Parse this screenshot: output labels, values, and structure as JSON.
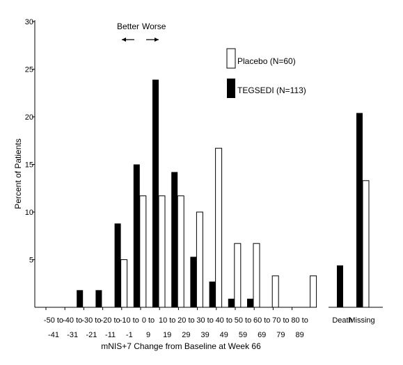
{
  "chart_data": {
    "type": "bar",
    "title": "",
    "xlabel": "mNIS+7 Change from Baseline at Week 66",
    "ylabel": "Percent of Patients",
    "ylim": [
      0,
      30
    ],
    "yticks": [
      5,
      10,
      15,
      20,
      25,
      30
    ],
    "grid": false,
    "legend_position": "top-right",
    "direction_labels": {
      "better": "Better",
      "worse": "Worse"
    },
    "categories": [
      {
        "line1": "-50 to",
        "line2": "-41"
      },
      {
        "line1": "-40 to",
        "line2": "-31"
      },
      {
        "line1": "-30 to",
        "line2": "-21"
      },
      {
        "line1": "-20 to",
        "line2": "-11"
      },
      {
        "line1": "-10 to",
        "line2": "-1"
      },
      {
        "line1": "0 to",
        "line2": "9"
      },
      {
        "line1": "10 to",
        "line2": "19"
      },
      {
        "line1": "20 to",
        "line2": "29"
      },
      {
        "line1": "30 to",
        "line2": "39"
      },
      {
        "line1": "40 to",
        "line2": "49"
      },
      {
        "line1": "50 to",
        "line2": "59"
      },
      {
        "line1": "60 to",
        "line2": "69"
      },
      {
        "line1": "70 to",
        "line2": "79"
      },
      {
        "line1": "80 to",
        "line2": "89"
      }
    ],
    "extra_categories": [
      "Death",
      "Missing"
    ],
    "series": [
      {
        "name": "Placebo (N=60)",
        "color": "#ffffff",
        "values": [
          0,
          0,
          0,
          5.0,
          11.7,
          11.7,
          11.7,
          10.0,
          16.7,
          6.7,
          6.7,
          3.3,
          0,
          3.3
        ],
        "extra_values": [
          0,
          13.3
        ]
      },
      {
        "name": "TEGSEDI (N=113)",
        "color": "#000000",
        "values": [
          0,
          1.8,
          1.8,
          8.8,
          15.0,
          23.9,
          14.2,
          5.3,
          2.7,
          0.9,
          0.9,
          0,
          0,
          0
        ],
        "extra_values": [
          4.4,
          20.4
        ]
      }
    ]
  }
}
